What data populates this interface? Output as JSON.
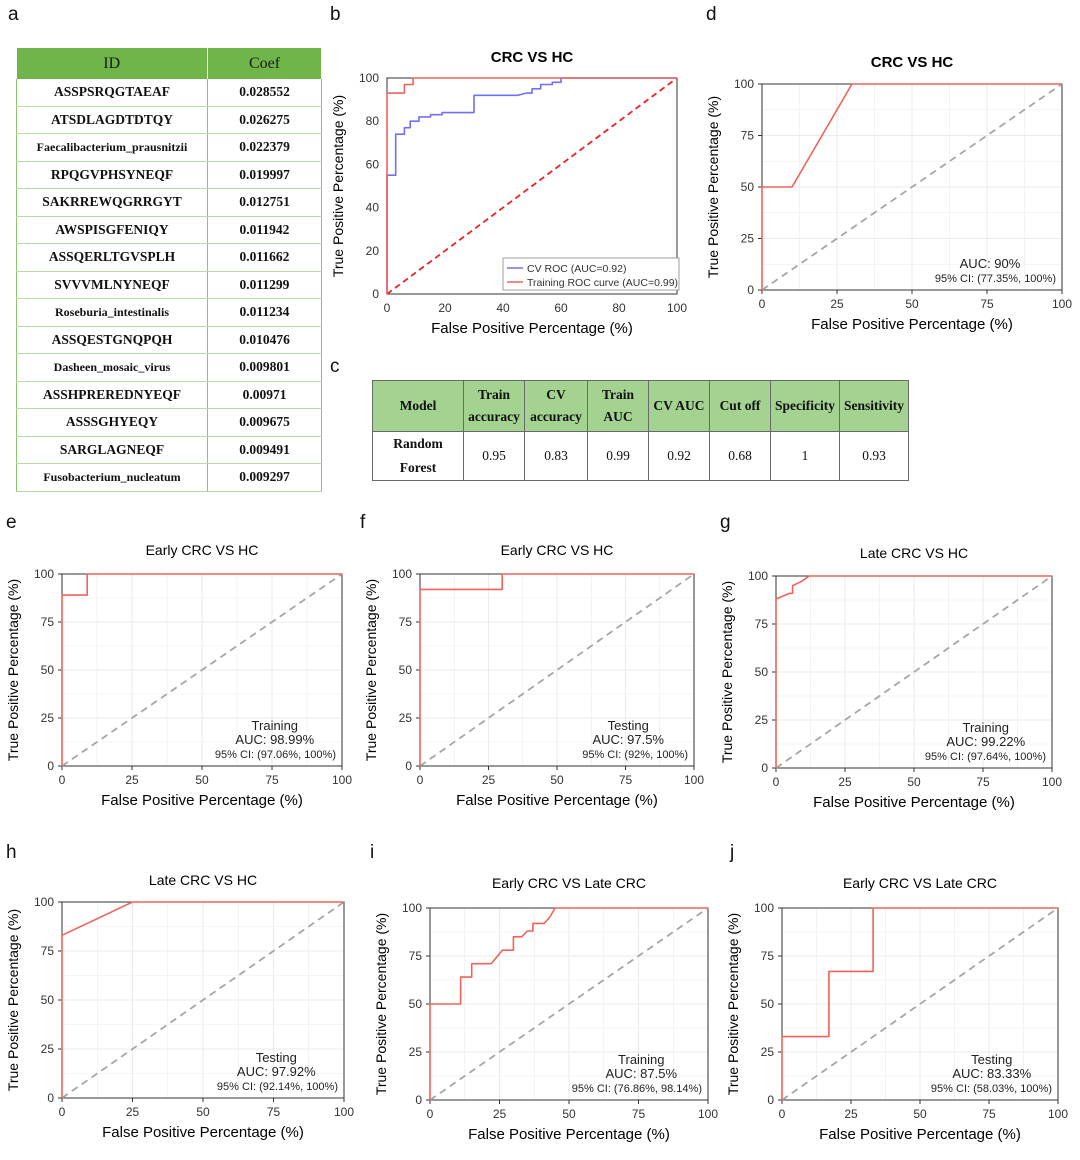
{
  "panel_letters": [
    "a",
    "b",
    "c",
    "d",
    "e",
    "f",
    "g",
    "h",
    "i",
    "j"
  ],
  "coef_table": {
    "headers": [
      "ID",
      "Coef"
    ],
    "rows": [
      [
        "ASSPSRQGTAEAF",
        "0.028552"
      ],
      [
        "ATSDLAGDTDTQY",
        "0.026275"
      ],
      [
        "Faecalibacterium_prausnitzii",
        "0.022379"
      ],
      [
        "RPQGVPHSYNEQF",
        "0.019997"
      ],
      [
        "SAKRREWQGRRGYT",
        "0.012751"
      ],
      [
        "AWSPISGFENIQY",
        "0.011942"
      ],
      [
        "ASSQERLTGVSPLH",
        "0.011662"
      ],
      [
        "SVVVMLNYNEQF",
        "0.011299"
      ],
      [
        "Roseburia_intestinalis",
        "0.011234"
      ],
      [
        "ASSQESTGNQPQH",
        "0.010476"
      ],
      [
        "Dasheen_mosaic_virus",
        "0.009801"
      ],
      [
        "ASSHPREREDNYEQF",
        "0.00971"
      ],
      [
        "ASSSGHYEQY",
        "0.009675"
      ],
      [
        "SARGLAGNEQF",
        "0.009491"
      ],
      [
        "Fusobacterium_nucleatum",
        "0.009297"
      ]
    ]
  },
  "model_table": {
    "headers": [
      [
        "Model"
      ],
      [
        "Train",
        "accuracy"
      ],
      [
        "CV",
        "accuracy"
      ],
      [
        "Train",
        "AUC"
      ],
      [
        "CV AUC"
      ],
      [
        "Cut off"
      ],
      [
        "Specificity"
      ],
      [
        "Sensitivity"
      ]
    ],
    "row": {
      "model": [
        "Random",
        "Forest"
      ],
      "values": [
        "0.95",
        "0.83",
        "0.99",
        "0.92",
        "0.68",
        "1",
        "0.93"
      ]
    }
  },
  "colors": {
    "roc_line": "#f0635a",
    "cv_line": "#7070f0",
    "overlap_line": "#a0306f",
    "diagonal": "#a6a6a6",
    "diagonal_red": "#ee2222",
    "grid": "#ebebeb",
    "table_header_green": "#6fb54a",
    "model_header_green": "#a4d391"
  },
  "chart_data": [
    {
      "panel": "b",
      "type": "line",
      "title": "CRC VS HC",
      "xlabel": "False Positive Percentage (%)",
      "ylabel": "True Positive Percentage (%)",
      "xlim": [
        0,
        100
      ],
      "ylim": [
        0,
        100
      ],
      "xticks": [
        "0",
        "20",
        "40",
        "60",
        "80",
        "100"
      ],
      "yticks": [
        "0",
        "20",
        "40",
        "60",
        "80",
        "100"
      ],
      "grid": false,
      "diagonal": "red",
      "series": [
        {
          "name": "CV ROC (AUC=0.92)",
          "color": "#7070f0",
          "points": [
            [
              0,
              0
            ],
            [
              0,
              55
            ],
            [
              3,
              55
            ],
            [
              3,
              74
            ],
            [
              6,
              74
            ],
            [
              6,
              77
            ],
            [
              8,
              77
            ],
            [
              8,
              80
            ],
            [
              11,
              80
            ],
            [
              11,
              82
            ],
            [
              15,
              82
            ],
            [
              15,
              83
            ],
            [
              19,
              83
            ],
            [
              19,
              84
            ],
            [
              30,
              84
            ],
            [
              30,
              92
            ],
            [
              45,
              92
            ],
            [
              45,
              92
            ],
            [
              48,
              93
            ],
            [
              50,
              93
            ],
            [
              50,
              95
            ],
            [
              53,
              95
            ],
            [
              53,
              97
            ],
            [
              57,
              97
            ],
            [
              57,
              98
            ],
            [
              60,
              98
            ],
            [
              60,
              100
            ],
            [
              100,
              100
            ]
          ]
        },
        {
          "name": "Training ROC curve (AUC=0.99)",
          "color": "#f0635a",
          "points": [
            [
              0,
              0
            ],
            [
              0,
              93
            ],
            [
              6,
              93
            ],
            [
              6,
              97
            ],
            [
              9,
              97
            ],
            [
              9,
              100
            ],
            [
              100,
              100
            ]
          ]
        }
      ],
      "legend": {
        "position": "bottom-right"
      }
    },
    {
      "panel": "d",
      "type": "line",
      "title": "CRC VS HC",
      "xlabel": "False Positive Percentage (%)",
      "ylabel": "True Positive Percentage (%)",
      "xlim": [
        0,
        100
      ],
      "ylim": [
        0,
        100
      ],
      "xticks": [
        "0",
        "25",
        "50",
        "75",
        "100"
      ],
      "yticks": [
        "0",
        "25",
        "50",
        "75",
        "100"
      ],
      "grid": true,
      "diagonal": "gray",
      "series": [
        {
          "name": "ROC",
          "points": [
            [
              0,
              0
            ],
            [
              0,
              50
            ],
            [
              10,
              50
            ],
            [
              30,
              100
            ],
            [
              100,
              100
            ]
          ]
        }
      ],
      "annotations": [
        "AUC: 90%",
        "95% CI: (77.35%, 100%)"
      ]
    },
    {
      "panel": "e",
      "type": "line",
      "title": "Early CRC VS HC",
      "xlabel": "False Positive Percentage (%)",
      "ylabel": "True Positive Percentage (%)",
      "xlim": [
        0,
        100
      ],
      "ylim": [
        0,
        100
      ],
      "xticks": [
        "0",
        "25",
        "50",
        "75",
        "100"
      ],
      "yticks": [
        "0",
        "25",
        "50",
        "75",
        "100"
      ],
      "grid": true,
      "diagonal": "gray",
      "series": [
        {
          "name": "ROC",
          "points": [
            [
              0,
              0
            ],
            [
              0,
              89
            ],
            [
              9,
              89
            ],
            [
              9,
              100
            ],
            [
              100,
              100
            ]
          ]
        }
      ],
      "annotations": [
        "Training",
        "AUC: 98.99%",
        "95% CI: (97.06%, 100%)"
      ]
    },
    {
      "panel": "f",
      "type": "line",
      "title": "Early CRC VS HC",
      "xlabel": "False Positive Percentage (%)",
      "ylabel": "True Positive Percentage (%)",
      "xlim": [
        0,
        100
      ],
      "ylim": [
        0,
        100
      ],
      "xticks": [
        "0",
        "25",
        "50",
        "75",
        "100"
      ],
      "yticks": [
        "0",
        "25",
        "50",
        "75",
        "100"
      ],
      "grid": true,
      "diagonal": "gray",
      "series": [
        {
          "name": "ROC",
          "points": [
            [
              0,
              0
            ],
            [
              0,
              92
            ],
            [
              30,
              92
            ],
            [
              30,
              100
            ],
            [
              100,
              100
            ]
          ]
        }
      ],
      "annotations": [
        "Testing",
        "AUC: 97.5%",
        "95% CI: (92%, 100%)"
      ]
    },
    {
      "panel": "g",
      "type": "line",
      "title": "Late CRC VS HC",
      "xlabel": "False Positive Percentage (%)",
      "ylabel": "True Positive Percentage (%)",
      "xlim": [
        0,
        100
      ],
      "ylim": [
        0,
        100
      ],
      "xticks": [
        "0",
        "25",
        "50",
        "75",
        "100"
      ],
      "yticks": [
        "0",
        "25",
        "50",
        "75",
        "100"
      ],
      "grid": true,
      "diagonal": "gray",
      "series": [
        {
          "name": "ROC",
          "points": [
            [
              0,
              0
            ],
            [
              0,
              88
            ],
            [
              5,
              91
            ],
            [
              6,
              91
            ],
            [
              6,
              95
            ],
            [
              9,
              97
            ],
            [
              12,
              100
            ],
            [
              100,
              100
            ]
          ]
        }
      ],
      "annotations": [
        "Training",
        "AUC: 99.22%",
        "95% CI: (97.64%, 100%)"
      ]
    },
    {
      "panel": "h",
      "type": "line",
      "title": "Late CRC VS HC",
      "xlabel": "False Positive Percentage (%)",
      "ylabel": "True Positive Percentage (%)",
      "xlim": [
        0,
        100
      ],
      "ylim": [
        0,
        100
      ],
      "xticks": [
        "0",
        "25",
        "50",
        "75",
        "100"
      ],
      "yticks": [
        "0",
        "25",
        "50",
        "75",
        "100"
      ],
      "grid": true,
      "diagonal": "gray",
      "series": [
        {
          "name": "ROC",
          "points": [
            [
              0,
              0
            ],
            [
              0,
              83
            ],
            [
              25,
              100
            ],
            [
              100,
              100
            ]
          ]
        }
      ],
      "annotations": [
        "Testing",
        "AUC: 97.92%",
        "95% CI: (92.14%, 100%)"
      ]
    },
    {
      "panel": "i",
      "type": "line",
      "title": "Early CRC VS Late CRC",
      "xlabel": "False Positive Percentage (%)",
      "ylabel": "True Positive Percentage (%)",
      "xlim": [
        0,
        100
      ],
      "ylim": [
        0,
        100
      ],
      "xticks": [
        "0",
        "25",
        "50",
        "75",
        "100"
      ],
      "yticks": [
        "0",
        "25",
        "50",
        "75",
        "100"
      ],
      "grid": true,
      "diagonal": "gray",
      "series": [
        {
          "name": "ROC",
          "points": [
            [
              0,
              0
            ],
            [
              0,
              50
            ],
            [
              11,
              50
            ],
            [
              11,
              64
            ],
            [
              15,
              64
            ],
            [
              15,
              71
            ],
            [
              22,
              71
            ],
            [
              26,
              78
            ],
            [
              30,
              78
            ],
            [
              30,
              85
            ],
            [
              33,
              85
            ],
            [
              35,
              88
            ],
            [
              37,
              88
            ],
            [
              37,
              92
            ],
            [
              41,
              92
            ],
            [
              43,
              95
            ],
            [
              45,
              100
            ],
            [
              100,
              100
            ]
          ]
        }
      ],
      "annotations": [
        "Training",
        "AUC: 87.5%",
        "95% CI: (76.86%, 98.14%)"
      ]
    },
    {
      "panel": "j",
      "type": "line",
      "title": "Early CRC VS Late CRC",
      "xlabel": "False Positive Percentage (%)",
      "ylabel": "True Positive Percentage (%)",
      "xlim": [
        0,
        100
      ],
      "ylim": [
        0,
        100
      ],
      "xticks": [
        "0",
        "25",
        "50",
        "75",
        "100"
      ],
      "yticks": [
        "0",
        "25",
        "50",
        "75",
        "100"
      ],
      "grid": true,
      "diagonal": "gray",
      "series": [
        {
          "name": "ROC",
          "points": [
            [
              0,
              0
            ],
            [
              0,
              33
            ],
            [
              17,
              33
            ],
            [
              17,
              67
            ],
            [
              33,
              67
            ],
            [
              33,
              100
            ],
            [
              100,
              100
            ]
          ]
        }
      ],
      "annotations": [
        "Testing",
        "AUC: 83.33%",
        "95% CI: (58.03%, 100%)"
      ]
    }
  ]
}
